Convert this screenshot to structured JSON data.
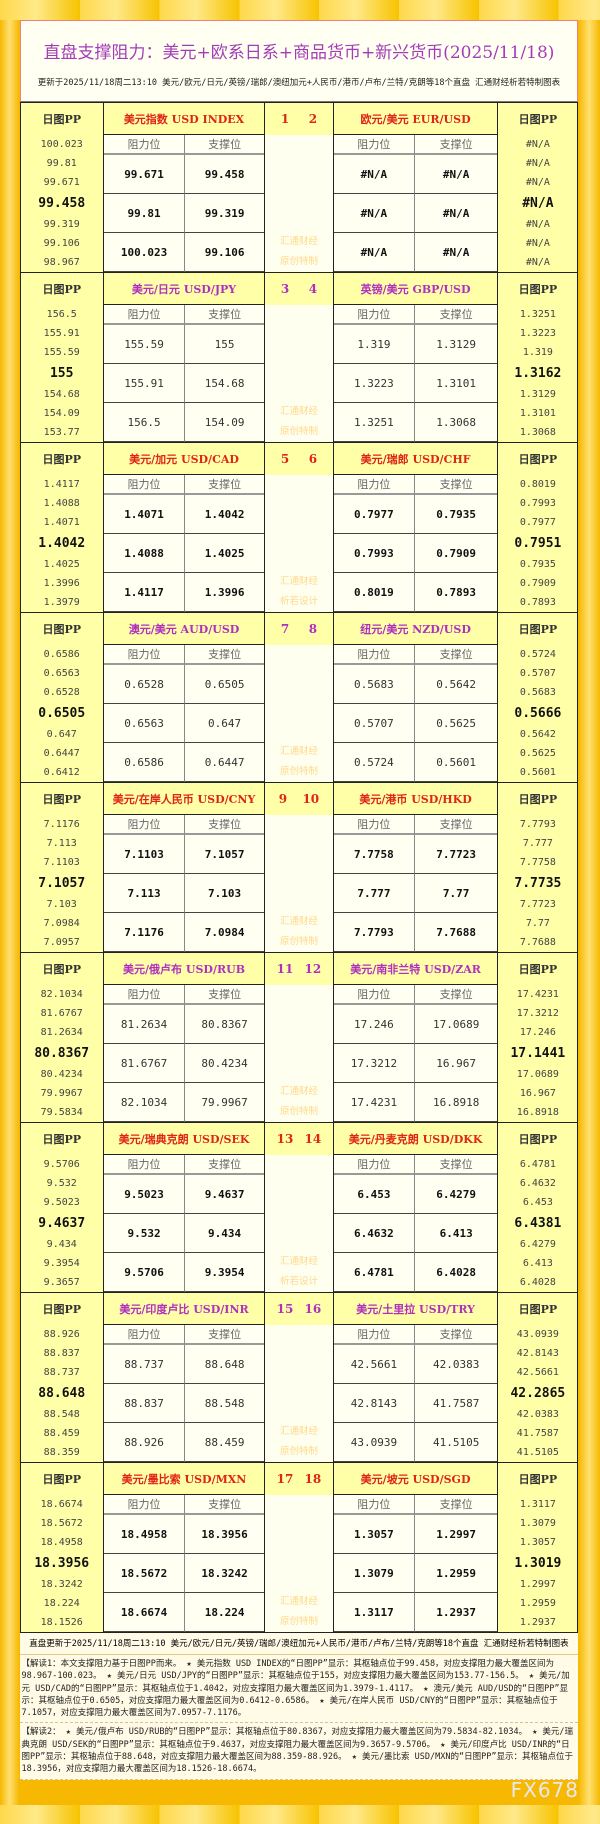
{
  "title": "直盘支撑阻力：美元+欧系日系+商品货币+新兴货币(2025/11/18)",
  "subtitle": "更新于2025/11/18周二13:10 美元/欧元/日元/英镑/瑞郎/澳纽加元+人民币/港币/卢布/兰特/克朗等18个直盘 汇通财经析若特制图表",
  "labels": {
    "pp": "日图PP",
    "resistance": "阻力位",
    "support": "支撑位"
  },
  "colors": {
    "red": "#e02418",
    "purple": "#b030c0",
    "gold": "#f6b800",
    "cream": "#fffff0",
    "pp_bg": "#ffffa8"
  },
  "blocks": [
    {
      "color": "red",
      "bold": true,
      "nums": [
        "1",
        "2"
      ],
      "wm": [
        "汇通财经",
        "原创特制"
      ],
      "left": {
        "name": "美元指数 USD INDEX",
        "res": [
          "99.671",
          "99.81",
          "100.023"
        ],
        "sup": [
          "99.458",
          "99.319",
          "99.106"
        ],
        "pp": [
          "100.023",
          "99.81",
          "99.671",
          "99.458",
          "99.319",
          "99.106",
          "98.967"
        ]
      },
      "right": {
        "name": "欧元/美元 EUR/USD",
        "res": [
          "#N/A",
          "#N/A",
          "#N/A"
        ],
        "sup": [
          "#N/A",
          "#N/A",
          "#N/A"
        ],
        "pp": [
          "#N/A",
          "#N/A",
          "#N/A",
          "#N/A",
          "#N/A",
          "#N/A",
          "#N/A"
        ]
      }
    },
    {
      "color": "purple",
      "bold": false,
      "nums": [
        "3",
        "4"
      ],
      "wm": [
        "汇通财经",
        "原创特制"
      ],
      "left": {
        "name": "美元/日元 USD/JPY",
        "res": [
          "155.59",
          "155.91",
          "156.5"
        ],
        "sup": [
          "155",
          "154.68",
          "154.09"
        ],
        "pp": [
          "156.5",
          "155.91",
          "155.59",
          "155",
          "154.68",
          "154.09",
          "153.77"
        ]
      },
      "right": {
        "name": "英镑/美元 GBP/USD",
        "res": [
          "1.319",
          "1.3223",
          "1.3251"
        ],
        "sup": [
          "1.3129",
          "1.3101",
          "1.3068"
        ],
        "pp": [
          "1.3251",
          "1.3223",
          "1.319",
          "1.3162",
          "1.3129",
          "1.3101",
          "1.3068"
        ]
      }
    },
    {
      "color": "red",
      "bold": true,
      "nums": [
        "5",
        "6"
      ],
      "wm": [
        "汇通财经",
        "析若设计"
      ],
      "left": {
        "name": "美元/加元 USD/CAD",
        "res": [
          "1.4071",
          "1.4088",
          "1.4117"
        ],
        "sup": [
          "1.4042",
          "1.4025",
          "1.3996"
        ],
        "pp": [
          "1.4117",
          "1.4088",
          "1.4071",
          "1.4042",
          "1.4025",
          "1.3996",
          "1.3979"
        ]
      },
      "right": {
        "name": "美元/瑞郎 USD/CHF",
        "res": [
          "0.7977",
          "0.7993",
          "0.8019"
        ],
        "sup": [
          "0.7935",
          "0.7909",
          "0.7893"
        ],
        "pp": [
          "0.8019",
          "0.7993",
          "0.7977",
          "0.7951",
          "0.7935",
          "0.7909",
          "0.7893"
        ]
      }
    },
    {
      "color": "purple",
      "bold": false,
      "nums": [
        "7",
        "8"
      ],
      "wm": [
        "汇通财经",
        "原创特制"
      ],
      "left": {
        "name": "澳元/美元 AUD/USD",
        "res": [
          "0.6528",
          "0.6563",
          "0.6586"
        ],
        "sup": [
          "0.6505",
          "0.647",
          "0.6447"
        ],
        "pp": [
          "0.6586",
          "0.6563",
          "0.6528",
          "0.6505",
          "0.647",
          "0.6447",
          "0.6412"
        ]
      },
      "right": {
        "name": "纽元/美元 NZD/USD",
        "res": [
          "0.5683",
          "0.5707",
          "0.5724"
        ],
        "sup": [
          "0.5642",
          "0.5625",
          "0.5601"
        ],
        "pp": [
          "0.5724",
          "0.5707",
          "0.5683",
          "0.5666",
          "0.5642",
          "0.5625",
          "0.5601"
        ]
      }
    },
    {
      "color": "red",
      "bold": true,
      "nums": [
        "9",
        "10"
      ],
      "wm": [
        "汇通财经",
        "原创特制"
      ],
      "left": {
        "name": "美元/在岸人民币 USD/CNY",
        "res": [
          "7.1103",
          "7.113",
          "7.1176"
        ],
        "sup": [
          "7.1057",
          "7.103",
          "7.0984"
        ],
        "pp": [
          "7.1176",
          "7.113",
          "7.1103",
          "7.1057",
          "7.103",
          "7.0984",
          "7.0957"
        ]
      },
      "right": {
        "name": "美元/港币 USD/HKD",
        "res": [
          "7.7758",
          "7.777",
          "7.7793"
        ],
        "sup": [
          "7.7723",
          "7.77",
          "7.7688"
        ],
        "pp": [
          "7.7793",
          "7.777",
          "7.7758",
          "7.7735",
          "7.7723",
          "7.77",
          "7.7688"
        ]
      }
    },
    {
      "color": "purple",
      "bold": false,
      "nums": [
        "11",
        "12"
      ],
      "wm": [
        "汇通财经",
        "原创特制"
      ],
      "left": {
        "name": "美元/俄卢布 USD/RUB",
        "res": [
          "81.2634",
          "81.6767",
          "82.1034"
        ],
        "sup": [
          "80.8367",
          "80.4234",
          "79.9967"
        ],
        "pp": [
          "82.1034",
          "81.6767",
          "81.2634",
          "80.8367",
          "80.4234",
          "79.9967",
          "79.5834"
        ]
      },
      "right": {
        "name": "美元/南非兰特 USD/ZAR",
        "res": [
          "17.246",
          "17.3212",
          "17.4231"
        ],
        "sup": [
          "17.0689",
          "16.967",
          "16.8918"
        ],
        "pp": [
          "17.4231",
          "17.3212",
          "17.246",
          "17.1441",
          "17.0689",
          "16.967",
          "16.8918"
        ]
      }
    },
    {
      "color": "red",
      "bold": true,
      "nums": [
        "13",
        "14"
      ],
      "wm": [
        "汇通财经",
        "析若设计"
      ],
      "left": {
        "name": "美元/瑞典克朗 USD/SEK",
        "res": [
          "9.5023",
          "9.532",
          "9.5706"
        ],
        "sup": [
          "9.4637",
          "9.434",
          "9.3954"
        ],
        "pp": [
          "9.5706",
          "9.532",
          "9.5023",
          "9.4637",
          "9.434",
          "9.3954",
          "9.3657"
        ]
      },
      "right": {
        "name": "美元/丹麦克朗 USD/DKK",
        "res": [
          "6.453",
          "6.4632",
          "6.4781"
        ],
        "sup": [
          "6.4279",
          "6.413",
          "6.4028"
        ],
        "pp": [
          "6.4781",
          "6.4632",
          "6.453",
          "6.4381",
          "6.4279",
          "6.413",
          "6.4028"
        ]
      }
    },
    {
      "color": "purple",
      "bold": false,
      "nums": [
        "15",
        "16"
      ],
      "wm": [
        "汇通财经",
        "原创特制"
      ],
      "left": {
        "name": "美元/印度卢比 USD/INR",
        "res": [
          "88.737",
          "88.837",
          "88.926"
        ],
        "sup": [
          "88.648",
          "88.548",
          "88.459"
        ],
        "pp": [
          "88.926",
          "88.837",
          "88.737",
          "88.648",
          "88.548",
          "88.459",
          "88.359"
        ]
      },
      "right": {
        "name": "美元/土里拉 USD/TRY",
        "res": [
          "42.5661",
          "42.8143",
          "43.0939"
        ],
        "sup": [
          "42.0383",
          "41.7587",
          "41.5105"
        ],
        "pp": [
          "43.0939",
          "42.8143",
          "42.5661",
          "42.2865",
          "42.0383",
          "41.7587",
          "41.5105"
        ]
      }
    },
    {
      "color": "red",
      "bold": true,
      "nums": [
        "17",
        "18"
      ],
      "wm": [
        "汇通财经",
        "原创特制"
      ],
      "left": {
        "name": "美元/墨比索 USD/MXN",
        "res": [
          "18.4958",
          "18.5672",
          "18.6674"
        ],
        "sup": [
          "18.3956",
          "18.3242",
          "18.224"
        ],
        "pp": [
          "18.6674",
          "18.5672",
          "18.4958",
          "18.3956",
          "18.3242",
          "18.224",
          "18.1526"
        ]
      },
      "right": {
        "name": "美元/坡元 USD/SGD",
        "res": [
          "1.3057",
          "1.3079",
          "1.3117"
        ],
        "sup": [
          "1.2997",
          "1.2959",
          "1.2937"
        ],
        "pp": [
          "1.3117",
          "1.3079",
          "1.3057",
          "1.3019",
          "1.2997",
          "1.2959",
          "1.2937"
        ]
      }
    }
  ],
  "footer": {
    "update": "直盘更新于2025/11/18周二13:10 美元/欧元/日元/英镑/瑞郎/澳纽加元+人民币/港币/卢布/兰特/克朗等18个直盘 汇通财经析若特制图表",
    "interp1": "【解读1：本文支撑阻力基于日图PP而来。 ★ 美元指数 USD INDEX的“日图PP”显示：其枢轴点位于99.458，对应支撑阻力最大覆盖区间为98.967-100.023。 ★ 美元/日元 USD/JPY的“日图PP”显示：其枢轴点位于155，对应支撑阻力最大覆盖区间为153.77-156.5。 ★ 美元/加元 USD/CAD的“日图PP”显示：其枢轴点位于1.4042，对应支撑阻力最大覆盖区间为1.3979-1.4117。 ★ 澳元/美元 AUD/USD的“日图PP”显示：其枢轴点位于0.6505，对应支撑阻力最大覆盖区间为0.6412-0.6586。 ★ 美元/在岸人民币 USD/CNY的“日图PP”显示：其枢轴点位于7.1057，对应支撑阻力最大覆盖区间为7.0957-7.1176。",
    "interp2": "【解读2： ★ 美元/俄卢布 USD/RUB的“日图PP”显示：其枢轴点位于80.8367，对应支撑阻力最大覆盖区间为79.5834-82.1034。 ★ 美元/瑞典克朗 USD/SEK的“日图PP”显示：其枢轴点位于9.4637，对应支撑阻力最大覆盖区间为9.3657-9.5706。 ★ 美元/印度卢比 USD/INR的“日图PP”显示：其枢轴点位于88.648，对应支撑阻力最大覆盖区间为88.359-88.926。 ★ 美元/墨比索 USD/MXN的“日图PP”显示：其枢轴点位于18.3956，对应支撑阻力最大覆盖区间为18.1526-18.6674。"
  },
  "watermark": "FX678"
}
